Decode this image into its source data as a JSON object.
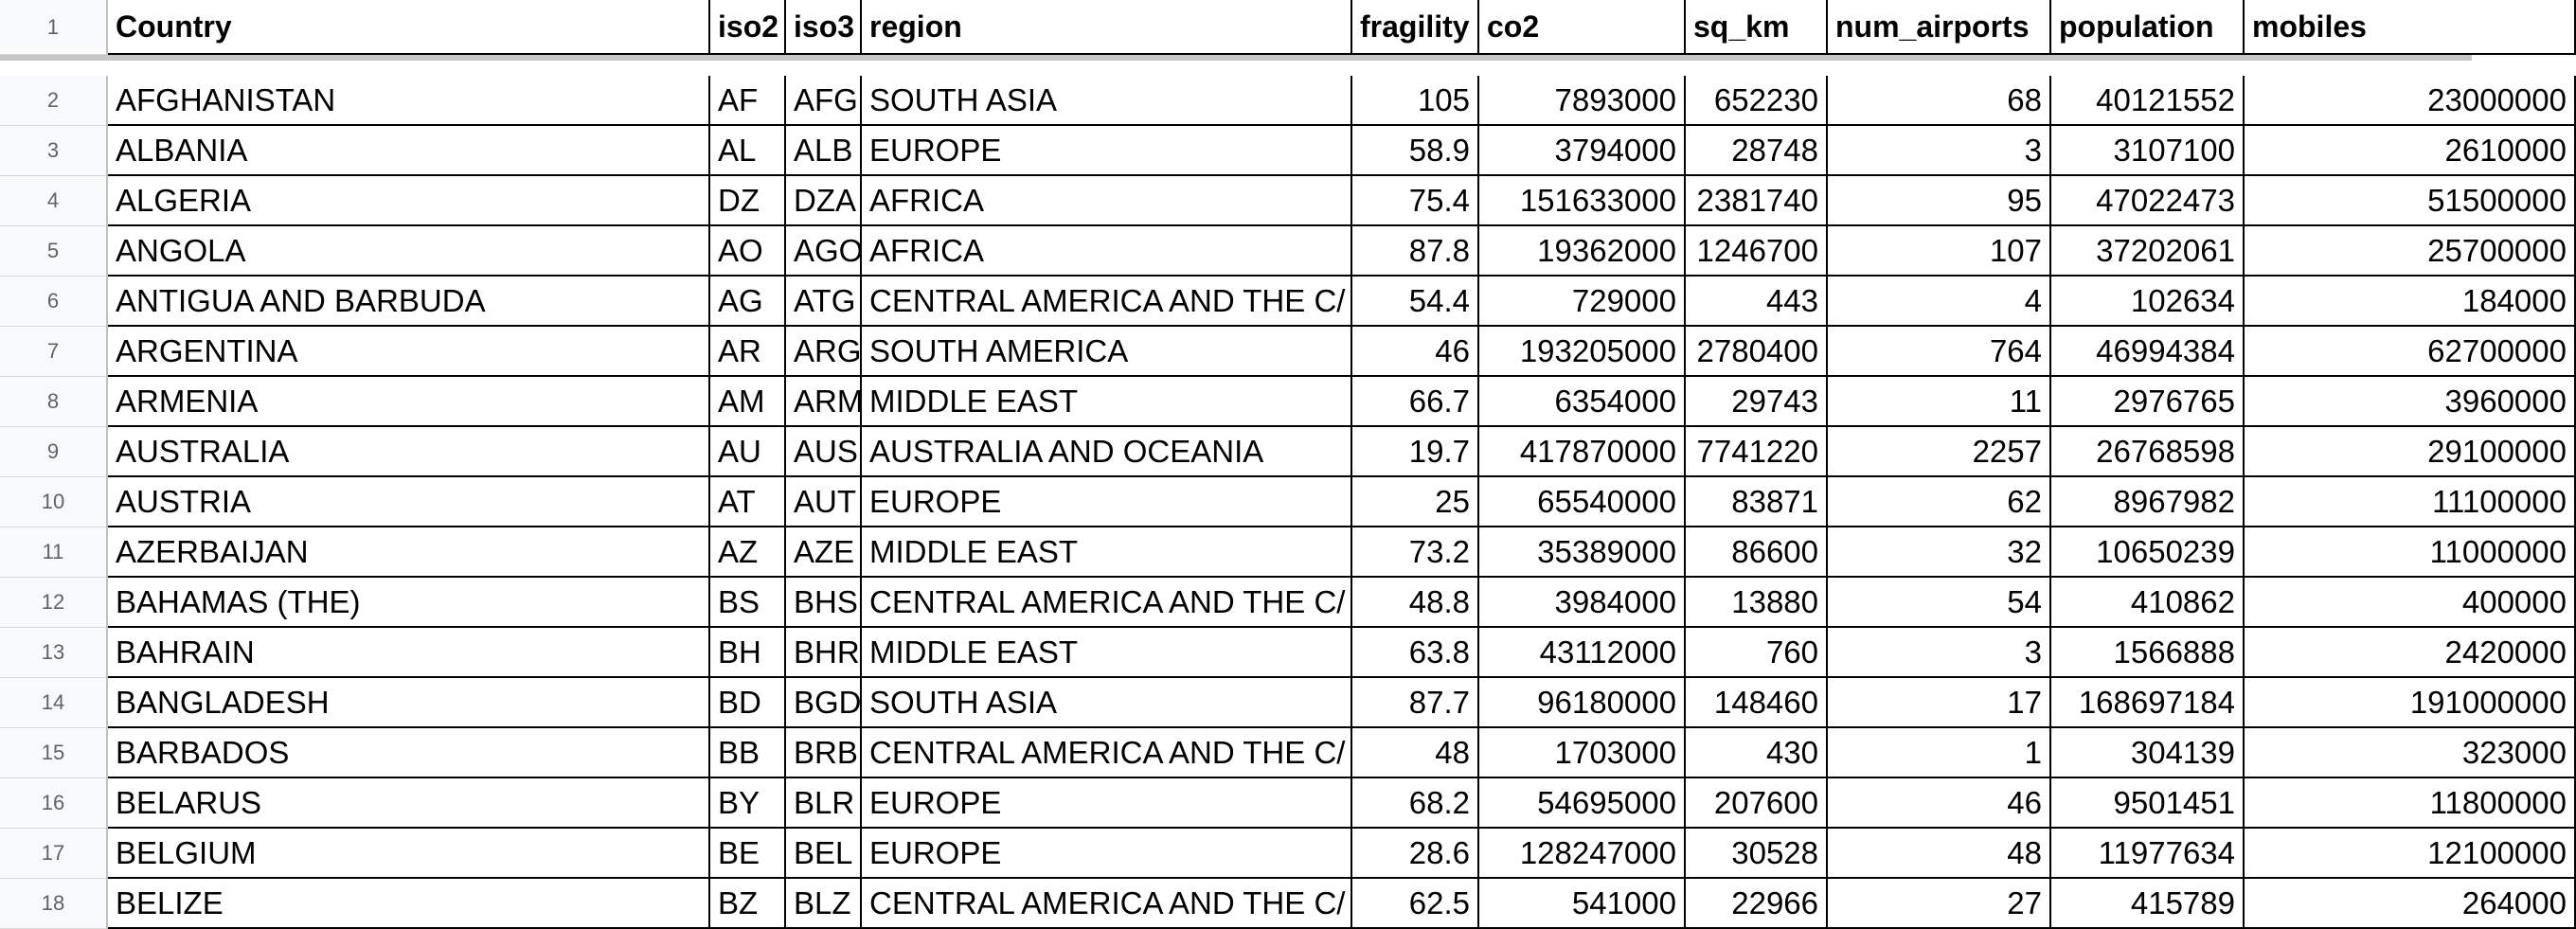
{
  "sheet": {
    "columns": [
      "Country",
      "iso2",
      "iso3",
      "region",
      "fragility",
      "co2",
      "sq_km",
      "num_airports",
      "population",
      "mobiles"
    ],
    "column_align": [
      "left",
      "left",
      "left",
      "left",
      "right",
      "right",
      "right",
      "right",
      "right",
      "right"
    ],
    "header_row_number": "1",
    "rows": [
      {
        "n": "2",
        "cells": [
          "AFGHANISTAN",
          "AF",
          "AFG",
          "SOUTH ASIA",
          "105",
          "7893000",
          "652230",
          "68",
          "40121552",
          "23000000"
        ]
      },
      {
        "n": "3",
        "cells": [
          "ALBANIA",
          "AL",
          "ALB",
          "EUROPE",
          "58.9",
          "3794000",
          "28748",
          "3",
          "3107100",
          "2610000"
        ]
      },
      {
        "n": "4",
        "cells": [
          "ALGERIA",
          "DZ",
          "DZA",
          "AFRICA",
          "75.4",
          "151633000",
          "2381740",
          "95",
          "47022473",
          "51500000"
        ]
      },
      {
        "n": "5",
        "cells": [
          "ANGOLA",
          "AO",
          "AGO",
          "AFRICA",
          "87.8",
          "19362000",
          "1246700",
          "107",
          "37202061",
          "25700000"
        ]
      },
      {
        "n": "6",
        "cells": [
          "ANTIGUA AND BARBUDA",
          "AG",
          "ATG",
          "CENTRAL AMERICA AND THE C/",
          "54.4",
          "729000",
          "443",
          "4",
          "102634",
          "184000"
        ]
      },
      {
        "n": "7",
        "cells": [
          "ARGENTINA",
          "AR",
          "ARG",
          "SOUTH AMERICA",
          "46",
          "193205000",
          "2780400",
          "764",
          "46994384",
          "62700000"
        ]
      },
      {
        "n": "8",
        "cells": [
          "ARMENIA",
          "AM",
          "ARM",
          "MIDDLE EAST",
          "66.7",
          "6354000",
          "29743",
          "11",
          "2976765",
          "3960000"
        ]
      },
      {
        "n": "9",
        "cells": [
          "AUSTRALIA",
          "AU",
          "AUS",
          "AUSTRALIA AND OCEANIA",
          "19.7",
          "417870000",
          "7741220",
          "2257",
          "26768598",
          "29100000"
        ]
      },
      {
        "n": "10",
        "cells": [
          "AUSTRIA",
          "AT",
          "AUT",
          "EUROPE",
          "25",
          "65540000",
          "83871",
          "62",
          "8967982",
          "11100000"
        ]
      },
      {
        "n": "11",
        "cells": [
          "AZERBAIJAN",
          "AZ",
          "AZE",
          "MIDDLE EAST",
          "73.2",
          "35389000",
          "86600",
          "32",
          "10650239",
          "11000000"
        ]
      },
      {
        "n": "12",
        "cells": [
          "BAHAMAS (THE)",
          "BS",
          "BHS",
          "CENTRAL AMERICA AND THE C/",
          "48.8",
          "3984000",
          "13880",
          "54",
          "410862",
          "400000"
        ]
      },
      {
        "n": "13",
        "cells": [
          "BAHRAIN",
          "BH",
          "BHR",
          "MIDDLE EAST",
          "63.8",
          "43112000",
          "760",
          "3",
          "1566888",
          "2420000"
        ]
      },
      {
        "n": "14",
        "cells": [
          "BANGLADESH",
          "BD",
          "BGD",
          "SOUTH ASIA",
          "87.7",
          "96180000",
          "148460",
          "17",
          "168697184",
          "191000000"
        ]
      },
      {
        "n": "15",
        "cells": [
          "BARBADOS",
          "BB",
          "BRB",
          "CENTRAL AMERICA AND THE C/",
          "48",
          "1703000",
          "430",
          "1",
          "304139",
          "323000"
        ]
      },
      {
        "n": "16",
        "cells": [
          "BELARUS",
          "BY",
          "BLR",
          "EUROPE",
          "68.2",
          "54695000",
          "207600",
          "46",
          "9501451",
          "11800000"
        ]
      },
      {
        "n": "17",
        "cells": [
          "BELGIUM",
          "BE",
          "BEL",
          "EUROPE",
          "28.6",
          "128247000",
          "30528",
          "48",
          "11977634",
          "12100000"
        ]
      },
      {
        "n": "18",
        "cells": [
          "BELIZE",
          "BZ",
          "BLZ",
          "CENTRAL AMERICA AND THE C/",
          "62.5",
          "541000",
          "22966",
          "27",
          "415789",
          "264000"
        ]
      }
    ]
  }
}
